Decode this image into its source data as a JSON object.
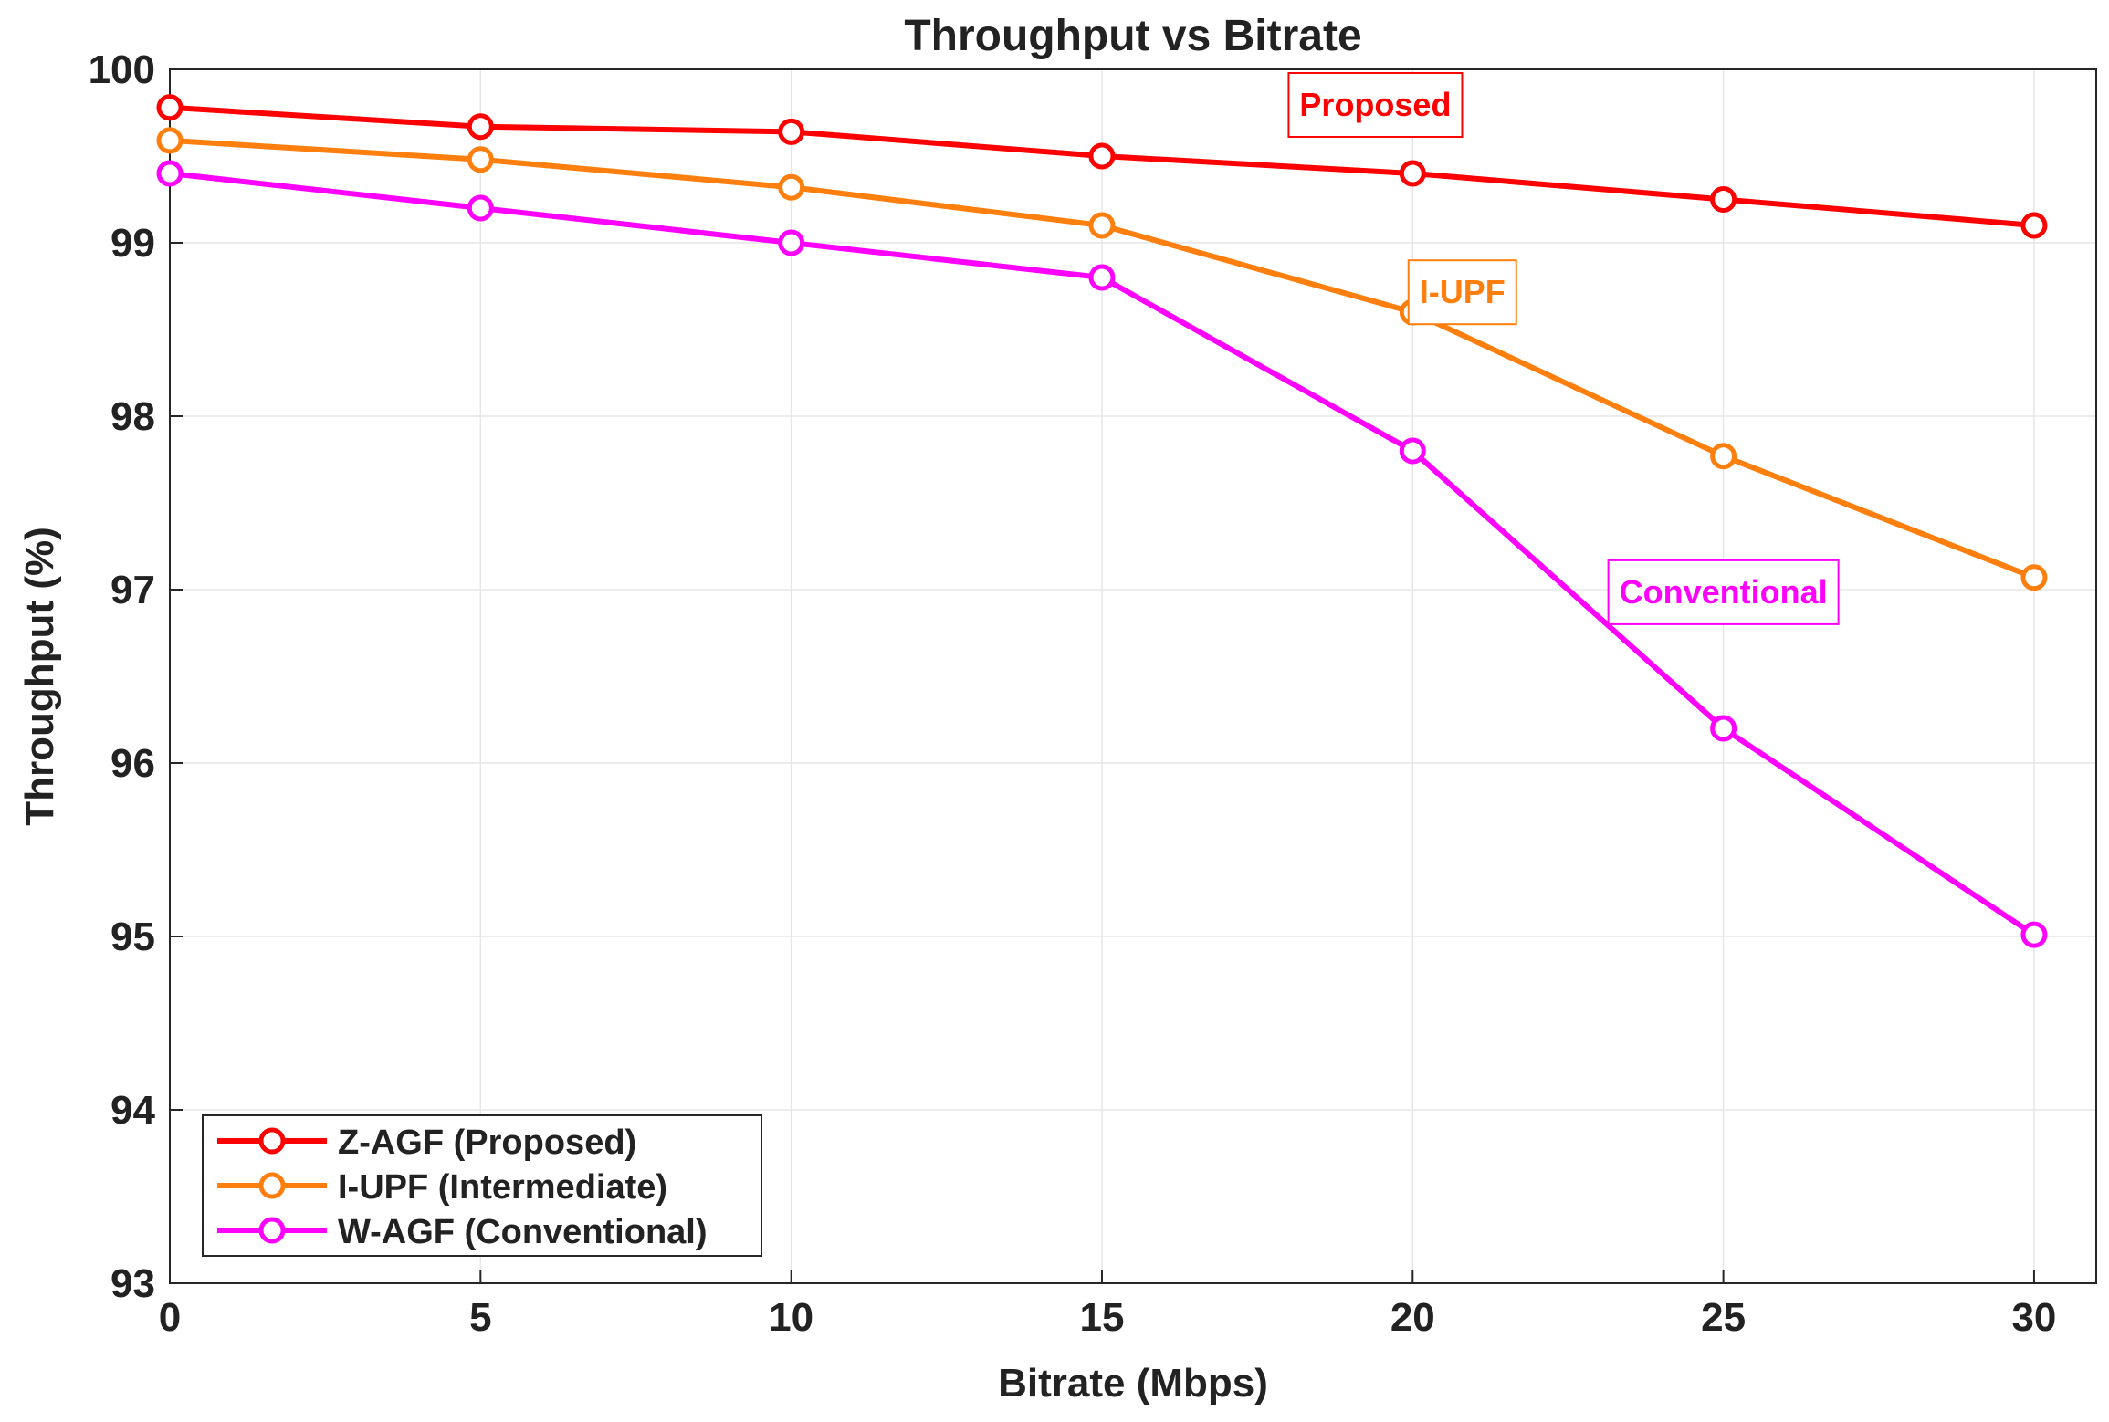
{
  "chart_data": {
    "type": "line",
    "title": "Throughput vs Bitrate",
    "xlabel": "Bitrate (Mbps)",
    "ylabel": "Throughput (%)",
    "xlim": [
      0,
      31
    ],
    "ylim": [
      93,
      100
    ],
    "xticks": [
      "0",
      "5",
      "10",
      "15",
      "20",
      "25",
      "30"
    ],
    "yticks": [
      "93",
      "94",
      "95",
      "96",
      "97",
      "98",
      "99",
      "100"
    ],
    "grid": true,
    "legend_position": "bottom-left",
    "x": [
      0,
      5,
      10,
      15,
      20,
      25,
      30
    ],
    "series": [
      {
        "name": "Z-AGF (Proposed)",
        "color": "#ff0000",
        "marker": "circle",
        "values": [
          99.78,
          99.67,
          99.64,
          99.5,
          99.4,
          99.25,
          99.1
        ]
      },
      {
        "name": "I-UPF (Intermediate)",
        "color": "#ff7f0e",
        "marker": "circle",
        "values": [
          99.59,
          99.48,
          99.32,
          99.1,
          98.6,
          97.77,
          97.07
        ]
      },
      {
        "name": "W-AGF (Conventional)",
        "color": "#ff00ff",
        "marker": "circle",
        "values": [
          99.4,
          99.2,
          99.0,
          98.8,
          97.8,
          96.2,
          95.01
        ]
      }
    ],
    "annotations": [
      {
        "text": "Proposed",
        "color": "#ff0000",
        "x": 19.4,
        "y": 99.8
      },
      {
        "text": "I-UPF",
        "color": "#ff7f0e",
        "x": 20.8,
        "y": 98.72
      },
      {
        "text": "Conventional",
        "color": "#ff00ff",
        "x": 25.0,
        "y": 96.99
      }
    ]
  }
}
